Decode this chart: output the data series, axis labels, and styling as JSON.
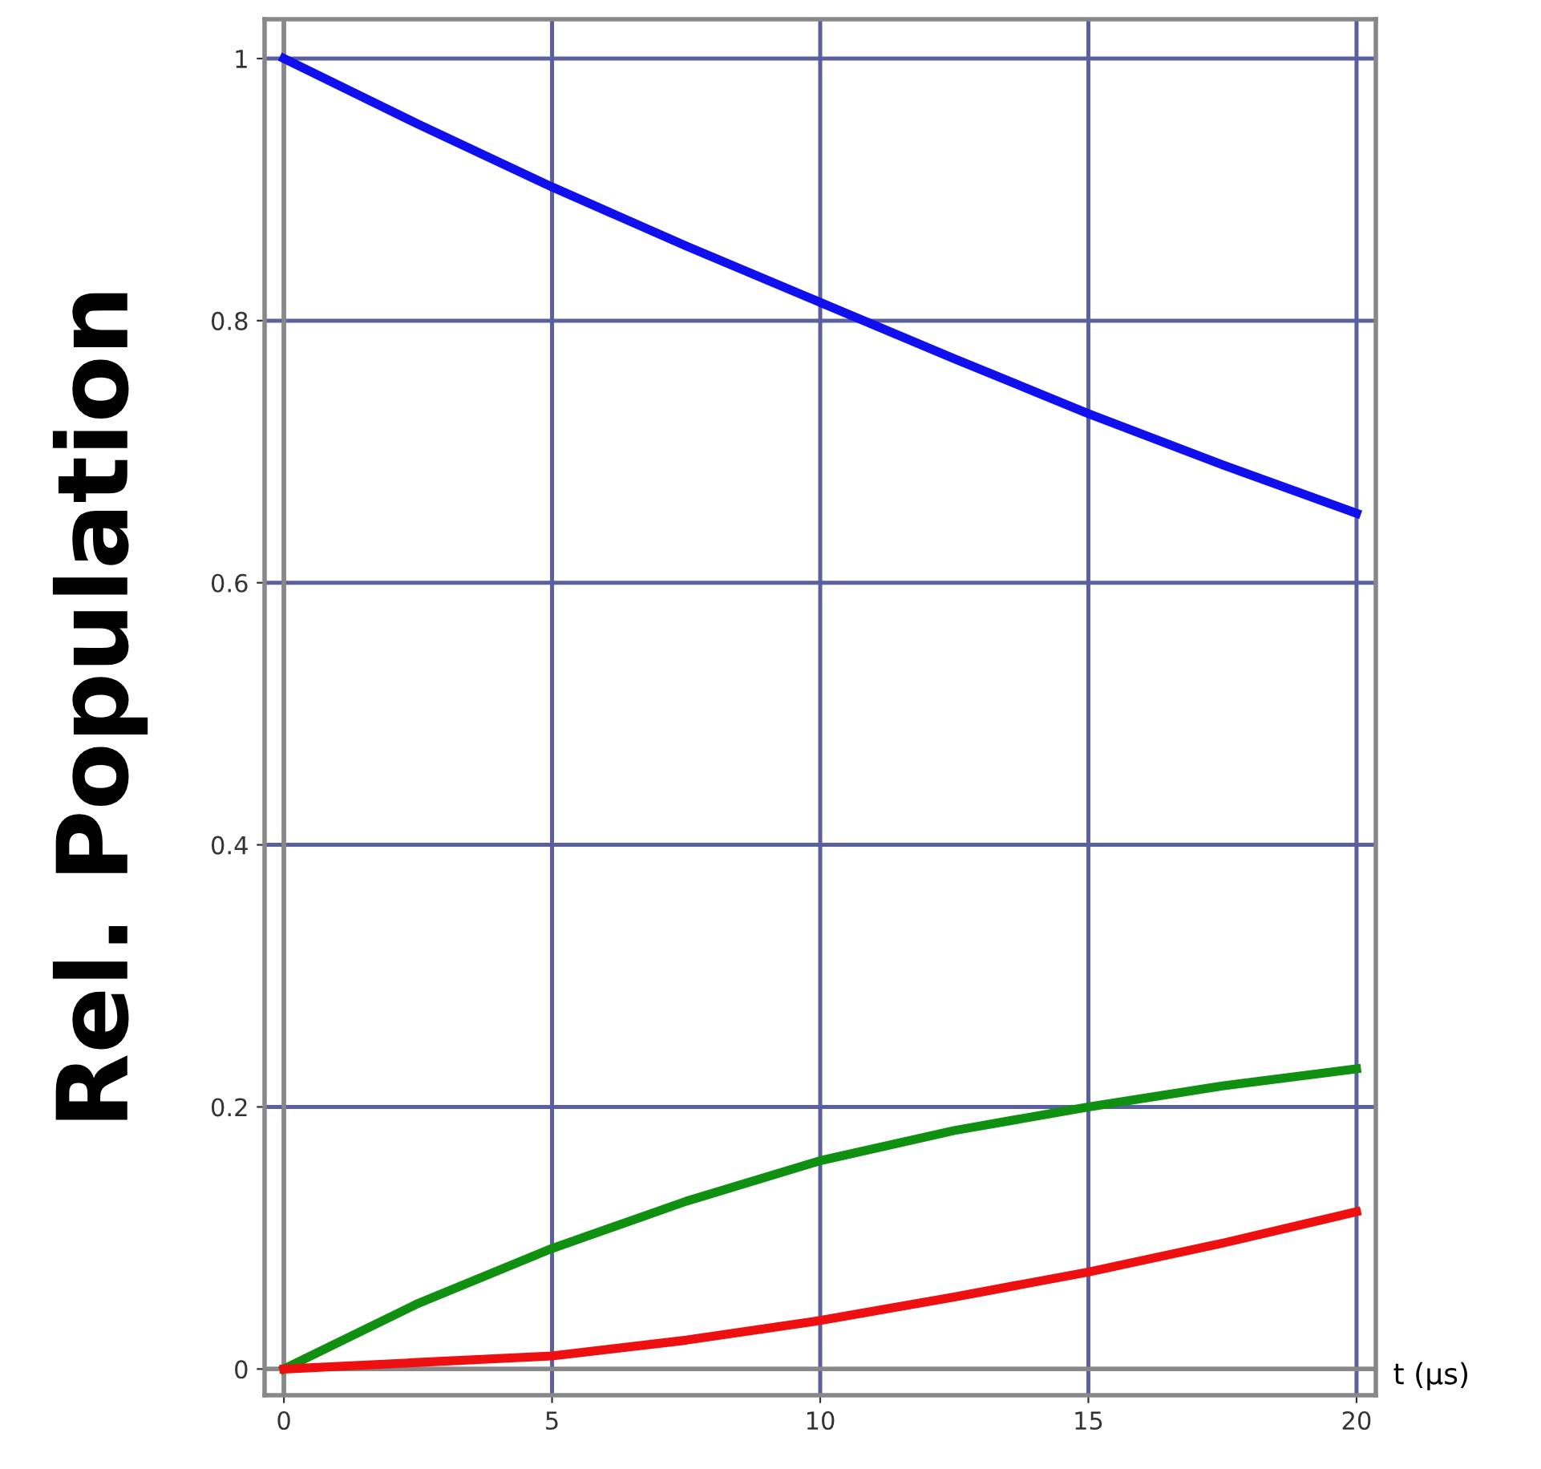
{
  "chart_data": {
    "type": "line",
    "xlabel": "t (μs)",
    "ylabel": "Rel. Population",
    "x": [
      0,
      2.5,
      5,
      7.5,
      10,
      12.5,
      15,
      17.5,
      20
    ],
    "series": [
      {
        "color": "#1010ee",
        "values": [
          1.0,
          0.95,
          0.902,
          0.857,
          0.814,
          0.771,
          0.729,
          0.69,
          0.653
        ]
      },
      {
        "color": "#109010",
        "values": [
          0.0,
          0.05,
          0.092,
          0.128,
          0.159,
          0.182,
          0.2,
          0.216,
          0.229
        ]
      },
      {
        "color": "#ee1010",
        "values": [
          0.0,
          0.005,
          0.01,
          0.022,
          0.037,
          0.055,
          0.074,
          0.096,
          0.12
        ]
      }
    ],
    "xlim": [
      -0.36,
      20.36
    ],
    "ylim": [
      -0.02,
      1.03
    ],
    "xticks": [
      0,
      5,
      10,
      15,
      20
    ],
    "yticks": [
      0,
      0.2,
      0.4,
      0.6,
      0.8,
      1
    ],
    "grid": true,
    "marker": "none",
    "line_style": "solid"
  }
}
